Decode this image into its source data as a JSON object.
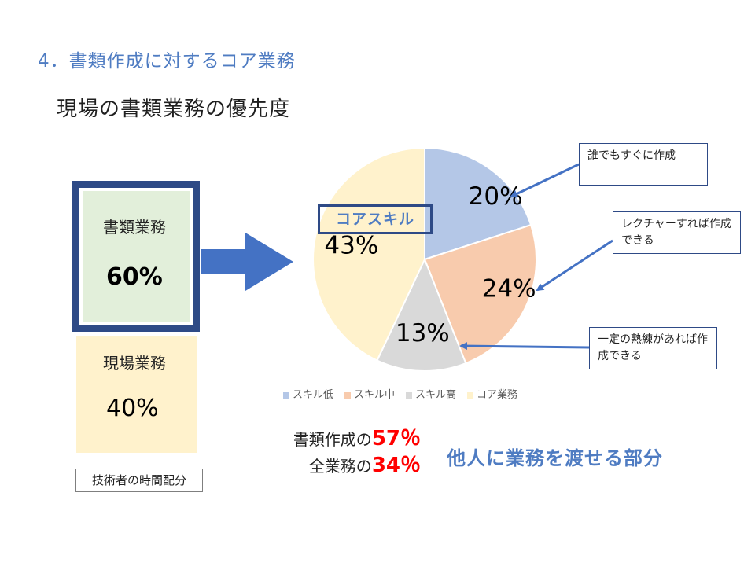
{
  "slide": {
    "heading": "4．書類作成に対するコア業務",
    "subheading": "現場の書類業務の優先度"
  },
  "time_allocation": {
    "document_work": {
      "label": "書類業務",
      "value": "60%"
    },
    "field_work": {
      "label": "現場業務",
      "value": "40%"
    },
    "caption": "技術者の時間配分"
  },
  "core_skill_label": "コアスキル",
  "callouts": [
    "誰でもすぐに作成",
    "レクチャーすれば作成できる",
    "一定の熟練があれば作成できる"
  ],
  "stats": {
    "document_prefix": "書類作成の",
    "document_value": "57％",
    "all_prefix": "全業務の",
    "all_value": "34％"
  },
  "transfer_text": "他人に業務を渡せる部分",
  "colors": {
    "heading": "#4f7cc2",
    "frame": "#2e4a86",
    "arrow": "#4472c4",
    "highlight": "#ff0000"
  },
  "chart_data": {
    "type": "pie",
    "categories": [
      "スキル低",
      "スキル中",
      "スキル高",
      "コア業務"
    ],
    "values": [
      20,
      24,
      13,
      43
    ],
    "labels": [
      "20%",
      "24%",
      "13%",
      "43%"
    ],
    "colors": [
      "#b4c7e7",
      "#f8cbad",
      "#d9d9d9",
      "#fff2cc"
    ],
    "legend_position": "bottom"
  }
}
